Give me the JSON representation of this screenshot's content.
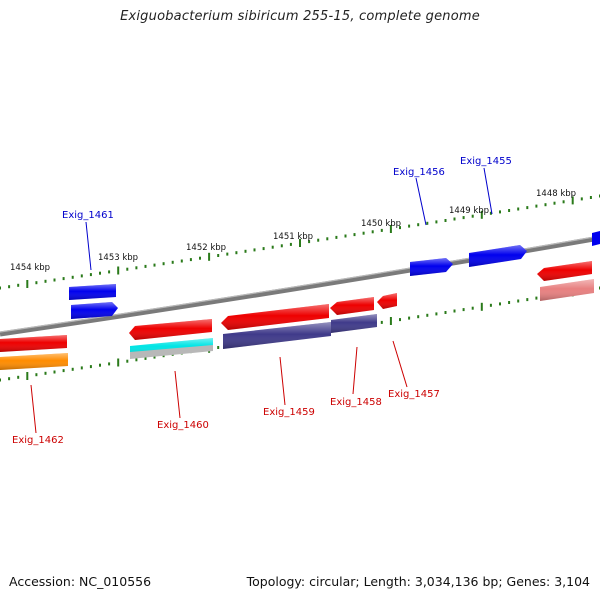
{
  "title": "Exiguobacterium sibiricum 255-15, complete genome",
  "footer": {
    "accession": "Accession: NC_010556",
    "summary": "Topology: circular; Length: 3,034,136 bp; Genes: 3,104"
  },
  "scale_labels": [
    "1454 kbp",
    "1453 kbp",
    "1452 kbp",
    "1451 kbp",
    "1450 kbp",
    "1449 kbp",
    "1448 kbp"
  ],
  "colors": {
    "plus_strand_label": "#0000cc",
    "minus_strand_label": "#cc0000",
    "genome_line": "#808080",
    "tick": "#2a7a1a"
  },
  "genes": [
    {
      "label": "Exig_1461",
      "strand": "+",
      "color": "#0000ee",
      "second_color": "#0000ee"
    },
    {
      "label": "Exig_1456",
      "strand": "+",
      "color": "#0000ee",
      "second_color": null
    },
    {
      "label": "Exig_1455",
      "strand": "+",
      "color": "#0000ee",
      "second_color": null
    },
    {
      "label": "Exig_1462",
      "strand": "-",
      "color": "#ee0000",
      "second_color": "#ff8c00"
    },
    {
      "label": "Exig_1460",
      "strand": "-",
      "color": "#ee0000",
      "second_color": "#00e5e5"
    },
    {
      "label": "Exig_1459",
      "strand": "-",
      "color": "#ee0000",
      "second_color": "#3f3a8a"
    },
    {
      "label": "Exig_1458",
      "strand": "-",
      "color": "#ee0000",
      "second_color": "#3f3a8a"
    },
    {
      "label": "Exig_1457",
      "strand": "-",
      "color": "#ee0000",
      "second_color": null
    }
  ]
}
